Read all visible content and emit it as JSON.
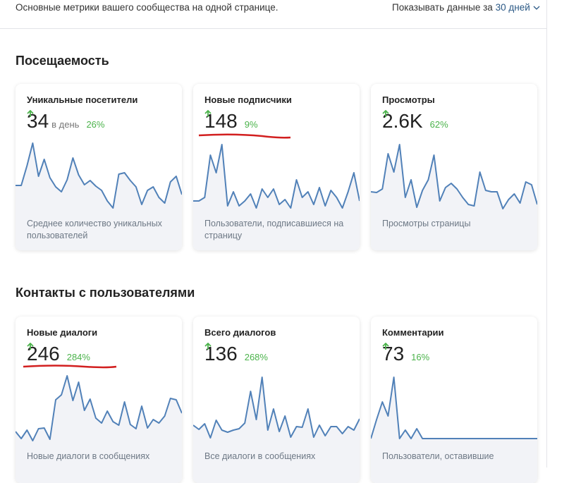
{
  "header": {
    "description": "Основные метрики вашего сообщества на одной странице.",
    "period_label": "Показывать данные за",
    "period_value": "30 дней"
  },
  "sections": [
    {
      "title": "Посещаемость",
      "cards": [
        {
          "title": "Уникальные посетители",
          "value": "34",
          "unit": "в день",
          "change": "26%",
          "description": "Среднее количество уникальных пользователей",
          "sparkline": [
            41,
            41,
            69,
            101,
            54,
            78,
            52,
            39,
            32,
            49,
            80,
            56,
            42,
            48,
            40,
            34,
            19,
            9,
            57,
            59,
            48,
            39,
            14,
            34,
            39,
            24,
            16,
            46,
            54,
            28
          ]
        },
        {
          "title": "Новые подписчики",
          "value": "148",
          "change": "9%",
          "description": "Пользователи, подписавшиеся на страницу",
          "sparkline": [
            19,
            19,
            24,
            84,
            59,
            99,
            12,
            32,
            12,
            19,
            29,
            9,
            36,
            24,
            36,
            14,
            21,
            9,
            49,
            24,
            32,
            14,
            38,
            12,
            34,
            24,
            9,
            32,
            59,
            19
          ]
        },
        {
          "title": "Просмотры",
          "value": "2.6K",
          "change": "62%",
          "description": "Просмотры страницы",
          "sparkline": [
            32,
            31,
            36,
            86,
            60,
            99,
            24,
            49,
            10,
            34,
            49,
            84,
            19,
            38,
            44,
            36,
            24,
            14,
            12,
            60,
            34,
            32,
            32,
            8,
            21,
            29,
            16,
            46,
            42,
            14
          ]
        }
      ]
    },
    {
      "title": "Контакты с пользователями",
      "cards": [
        {
          "title": "Новые диалоги",
          "value": "246",
          "change": "284%",
          "description": "Новые диалоги в сообщениях",
          "sparkline": [
            22,
            12,
            24,
            9,
            26,
            27,
            11,
            67,
            74,
            101,
            66,
            92,
            52,
            68,
            41,
            34,
            51,
            36,
            31,
            64,
            32,
            26,
            58,
            27,
            39,
            34,
            44,
            69,
            67,
            48
          ]
        },
        {
          "title": "Всего диалогов",
          "value": "136",
          "change": "268%",
          "description": "Все диалоги в сообщениях",
          "sparkline": [
            31,
            25,
            33,
            13,
            38,
            24,
            21,
            24,
            26,
            34,
            79,
            39,
            99,
            24,
            54,
            22,
            44,
            14,
            29,
            28,
            54,
            14,
            31,
            16,
            29,
            29,
            19,
            29,
            24,
            40
          ]
        },
        {
          "title": "Комментарии",
          "value": "73",
          "change": "16%",
          "description": "Пользователи, оставившие",
          "sparkline": [
            12,
            39,
            64,
            44,
            99,
            12,
            24,
            12,
            26,
            12,
            12,
            12,
            12,
            12,
            12,
            12,
            12,
            12,
            12,
            12,
            12,
            12,
            12,
            12,
            12,
            12,
            12,
            12,
            12,
            12
          ]
        }
      ]
    }
  ]
}
